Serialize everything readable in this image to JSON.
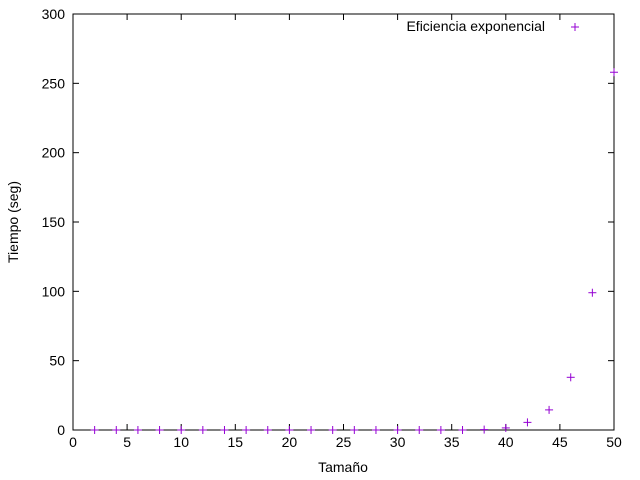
{
  "chart_data": {
    "type": "scatter",
    "title": "",
    "xlabel": "Tamaño",
    "ylabel": "Tiempo (seg)",
    "xlim": [
      0,
      50
    ],
    "ylim": [
      0,
      300
    ],
    "x_ticks": [
      "0",
      "5",
      "10",
      "15",
      "20",
      "25",
      "30",
      "35",
      "40",
      "45",
      "50"
    ],
    "y_ticks": [
      "0",
      "50",
      "100",
      "150",
      "200",
      "250",
      "300"
    ],
    "grid": false,
    "legend_position": "top-right",
    "series": [
      {
        "name": "Eficiencia exponencial",
        "color": "#9400d3",
        "marker": "plus",
        "x": [
          2,
          4,
          6,
          8,
          10,
          12,
          14,
          16,
          18,
          20,
          22,
          24,
          26,
          28,
          30,
          32,
          34,
          36,
          38,
          40,
          42,
          44,
          46,
          48,
          50
        ],
        "y": [
          0,
          0,
          0,
          0,
          0,
          0,
          0,
          0,
          0,
          0,
          0,
          0,
          0,
          0,
          0,
          0,
          0,
          0,
          0.3,
          1.5,
          5.5,
          14.5,
          38,
          99,
          258
        ]
      }
    ]
  }
}
